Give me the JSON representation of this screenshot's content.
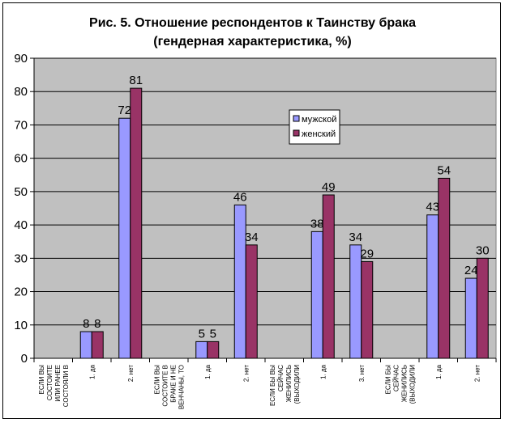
{
  "chart_data": {
    "type": "bar",
    "title": "Рис. 5. Отношение респондентов к Таинству брака",
    "subtitle": "(гендерная характеристика, %)",
    "xlabel": "",
    "ylabel": "",
    "ylim": [
      0,
      90
    ],
    "yticks": [
      0,
      10,
      20,
      30,
      40,
      50,
      60,
      70,
      80,
      90
    ],
    "grid": true,
    "legend_position": "upper-middle-right",
    "categories": [
      [
        "ЕСЛИ ВЫ",
        "СОСТОИТЕ",
        "ИЛИ РАНЕЕ",
        "СОСТОЯЛИ В"
      ],
      [
        "1. да"
      ],
      [
        "2. нет"
      ],
      [
        "ЕСЛИ ВЫ",
        "СОСТОИТЕ В",
        "БРАКЕ И НЕ",
        "ВЕНЧАНЫ, ТО"
      ],
      [
        "1. да"
      ],
      [
        "2. нет"
      ],
      [
        "ЕСЛИ БЫ ВЫ",
        "СЕЙЧАС",
        "ЖЕНИЛИСЬ",
        "(ВЫХОДИЛИ"
      ],
      [
        "1. да"
      ],
      [
        "3. нет"
      ],
      [
        "ЕСЛИ БЫ",
        "СЕЙЧАС",
        "ЖЕНИЛИСЬ",
        "(ВЫХОДИЛИ"
      ],
      [
        "1. да"
      ],
      [
        "2. нет"
      ]
    ],
    "series": [
      {
        "name": "мужской",
        "color": "#9999FF",
        "values": [
          null,
          8,
          72,
          null,
          5,
          46,
          null,
          38,
          34,
          null,
          43,
          24
        ]
      },
      {
        "name": "женский",
        "color": "#993366",
        "values": [
          null,
          8,
          81,
          null,
          5,
          34,
          null,
          49,
          29,
          null,
          54,
          30
        ]
      }
    ],
    "plot_background": "#C0C0C0"
  }
}
